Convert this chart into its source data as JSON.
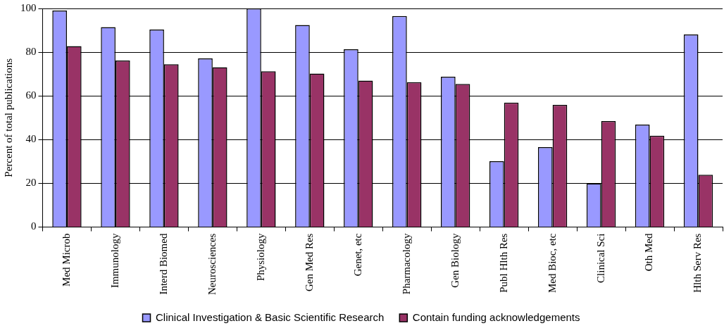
{
  "chart_data": {
    "type": "bar",
    "ylabel": "Percent of total publications",
    "categories": [
      "Med Microb",
      "Immunology",
      "Interd Biomed",
      "Neurosciences",
      "Physiology",
      "Gen Med Res",
      "Genet, etc",
      "Pharmacology",
      "Gen Biology",
      "Publ Hlth Res",
      "Med Bioc, etc",
      "Clinical Sci",
      "Oth Med",
      "Hlth Serv Res"
    ],
    "series": [
      {
        "name": "Clinical Investigation & Basic Scientific Research",
        "color": "#9999ff",
        "values": [
          99.0,
          91.5,
          90.3,
          77.1,
          100,
          92.4,
          81.3,
          96.5,
          68.8,
          30.1,
          36.6,
          20.0,
          46.9,
          88.1
        ]
      },
      {
        "name": "Contain funding acknowledgements",
        "color": "#993366",
        "values": [
          82.8,
          76.2,
          74.5,
          73.1,
          71.3,
          70.2,
          67.0,
          66.3,
          65.5,
          56.9,
          55.9,
          48.5,
          41.8,
          23.9
        ]
      }
    ],
    "ylim": [
      0,
      100
    ],
    "yticks": [
      0,
      20,
      40,
      60,
      80,
      100
    ],
    "grid": "y",
    "legend": "bottom"
  }
}
